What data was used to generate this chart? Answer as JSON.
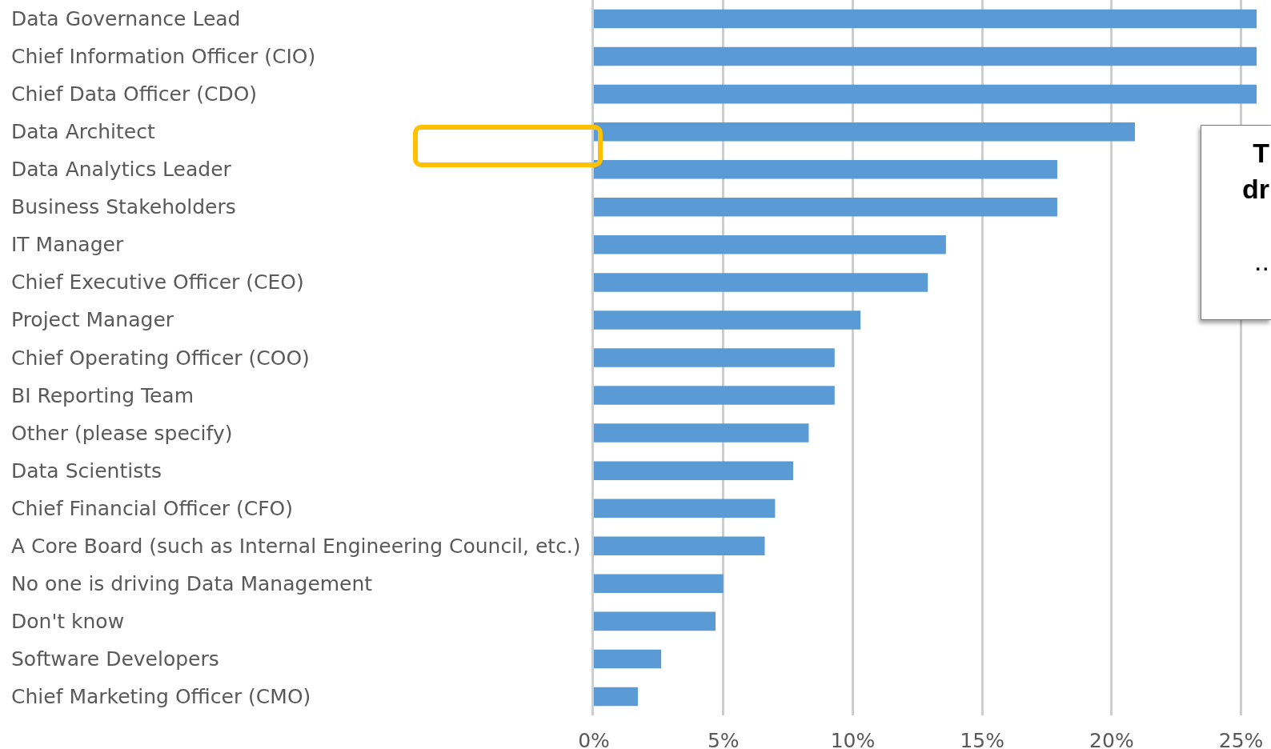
{
  "chart_data": {
    "type": "bar",
    "orientation": "horizontal",
    "categories": [
      "Data Governance Lead",
      "Chief Information Officer (CIO)",
      "Chief Data Officer (CDO)",
      "Data Architect",
      "Data Analytics Leader",
      "Business Stakeholders",
      "IT Manager",
      "Chief Executive Officer (CEO)",
      "Project Manager",
      "Chief Operating Officer (COO)",
      "BI Reporting Team",
      "Other (please specify)",
      "Data Scientists",
      "Chief Financial Officer (CFO)",
      "A Core Board (such as Internal Engineering Council, etc.)",
      "No one is driving Data Management",
      "Don't know",
      "Software Developers",
      "Chief Marketing Officer (CMO)"
    ],
    "values": [
      25.6,
      25.6,
      25.6,
      20.9,
      17.9,
      17.9,
      13.6,
      12.9,
      10.3,
      9.3,
      9.3,
      8.3,
      7.7,
      7.0,
      6.6,
      5.0,
      4.7,
      2.6,
      1.7
    ],
    "color": "#5b9bd5",
    "xlim": [
      0,
      25.6
    ],
    "xticks": [
      {
        "value": 0,
        "label": "0%"
      },
      {
        "value": 5,
        "label": "5%"
      },
      {
        "value": 10,
        "label": "10%"
      },
      {
        "value": 15,
        "label": "15%"
      },
      {
        "value": 20,
        "label": "20%"
      },
      {
        "value": 25,
        "label": "25%"
      }
    ],
    "grid": "x",
    "annotations": [
      "T",
      "dr",
      ".."
    ]
  }
}
